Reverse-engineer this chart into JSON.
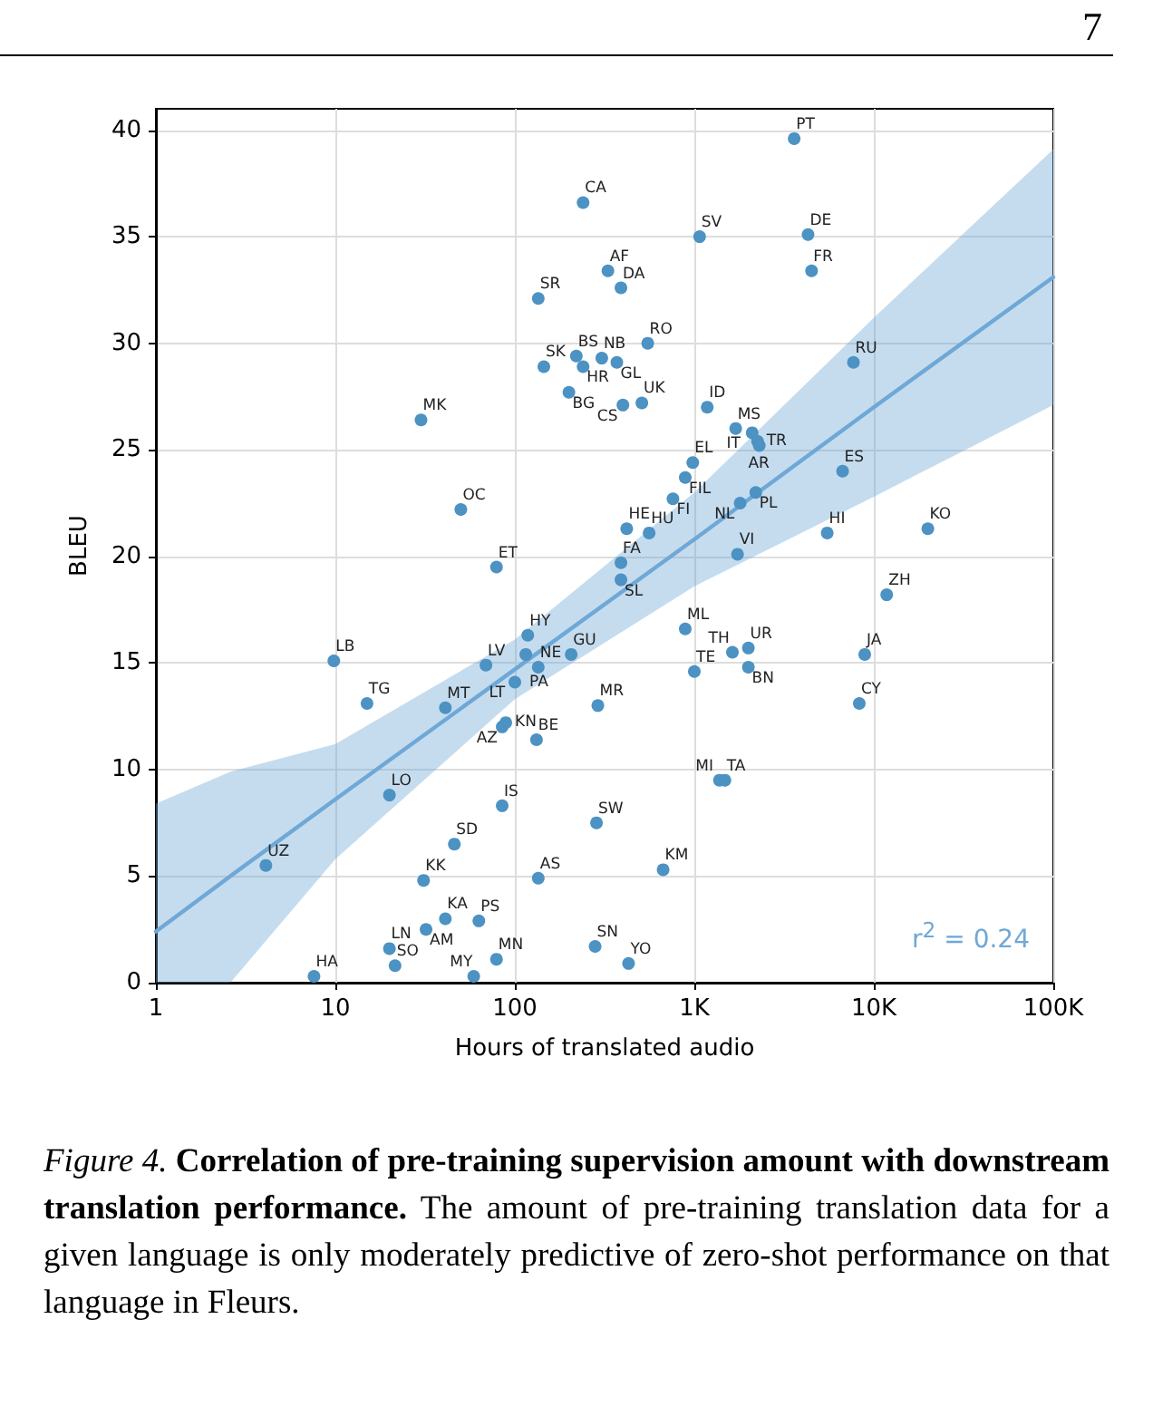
{
  "chart_data": {
    "type": "scatter",
    "xlabel": "Hours of translated audio",
    "ylabel": "BLEU",
    "log": "x",
    "grid": true,
    "xlim": [
      1,
      100000
    ],
    "ylim": [
      0,
      41
    ],
    "xticks": [
      1,
      10,
      100,
      {
        "value": 1000,
        "label": "1K"
      },
      {
        "value": 10000,
        "label": "10K"
      },
      {
        "value": 100000,
        "label": "100K"
      }
    ],
    "yticks": [
      0,
      5,
      10,
      15,
      20,
      25,
      30,
      35,
      40
    ],
    "series": [
      {
        "color": "#4c92c3",
        "marker": "circle",
        "x": [
          3600,
          240,
          1070,
          4300,
          330,
          390,
          4500,
          135,
          550,
          220,
          305,
          370,
          145,
          240,
          7700,
          200,
          400,
          510,
          30,
          1180,
          1700,
          2100,
          2250,
          2300,
          980,
          6700,
          890,
          2200,
          760,
          1800,
          50,
          420,
          560,
          5500,
          20000,
          390,
          1740,
          79,
          390,
          11800,
          890,
          118,
          206,
          1630,
          2000,
          8900,
          9.8,
          69,
          115,
          135,
          100,
          1000,
          2000,
          15,
          41,
          290,
          8300,
          89,
          85,
          132,
          20,
          85,
          285,
          1380,
          1480,
          4.1,
          46,
          31,
          135,
          670,
          41,
          63,
          32,
          20,
          21.5,
          7.6,
          59,
          79,
          280,
          430
        ],
        "values": [
          39.6,
          36.6,
          35.0,
          35.1,
          33.4,
          32.6,
          33.4,
          32.1,
          30.0,
          29.4,
          29.3,
          29.1,
          28.9,
          28.9,
          29.1,
          27.7,
          27.1,
          27.2,
          26.4,
          27.0,
          26.0,
          25.8,
          25.4,
          25.2,
          24.4,
          24.0,
          23.7,
          23.0,
          22.7,
          22.5,
          22.2,
          21.3,
          21.1,
          21.1,
          21.3,
          19.7,
          20.1,
          19.5,
          18.9,
          18.2,
          16.6,
          16.3,
          15.4,
          15.5,
          15.7,
          15.4,
          15.1,
          14.9,
          15.4,
          14.8,
          14.1,
          14.6,
          14.8,
          13.1,
          12.9,
          13.0,
          13.1,
          12.2,
          12.0,
          11.4,
          8.8,
          8.3,
          7.5,
          9.5,
          9.5,
          5.5,
          6.5,
          4.8,
          4.9,
          5.3,
          3.0,
          2.9,
          2.5,
          1.6,
          0.8,
          0.3,
          0.3,
          1.1,
          1.7,
          0.9
        ]
      },
      {
        "type": "line",
        "color": "#6fa8d6",
        "x": [
          1,
          2.6,
          10,
          100,
          1000,
          10000,
          100000
        ],
        "values": [
          2.4,
          5.0,
          8.6,
          14.7,
          20.8,
          27.0,
          33.1
        ],
        "upper": [
          8.4,
          9.9,
          11.2,
          16.1,
          23.0,
          31.2,
          39.1
        ],
        "lower": [
          0,
          0,
          5.8,
          13.3,
          18.6,
          22.8,
          27.1
        ]
      }
    ],
    "annotations": [
      "7",
      "r$^{2}$ = 0.24",
      "Figure 4. Correlation of pre-training supervision amount with downstream translation performance. The amount of pre-training translation data for a given language is only moderately predictive of zero-shot performance on that language in Fleurs.",
      {
        "text": "PT",
        "x": 3600,
        "y": 39.6
      },
      {
        "text": "CA",
        "x": 240,
        "y": 36.6
      },
      {
        "text": "SV",
        "x": 1070,
        "y": 35.0
      },
      {
        "text": "DE",
        "x": 4300,
        "y": 35.1
      },
      {
        "text": "AF",
        "x": 330,
        "y": 33.4
      },
      {
        "text": "DA",
        "x": 390,
        "y": 32.6
      },
      {
        "text": "FR",
        "x": 4500,
        "y": 33.4
      },
      {
        "text": "SR",
        "x": 135,
        "y": 32.1
      },
      {
        "text": "RO",
        "x": 550,
        "y": 30.0
      },
      {
        "text": "BS",
        "x": 220,
        "y": 29.4
      },
      {
        "text": "NB",
        "x": 305,
        "y": 29.3
      },
      {
        "text": "GL",
        "x": 370,
        "y": 29.1
      },
      {
        "text": "SK",
        "x": 145,
        "y": 28.9
      },
      {
        "text": "HR",
        "x": 240,
        "y": 28.9
      },
      {
        "text": "RU",
        "x": 7700,
        "y": 29.1
      },
      {
        "text": "BG",
        "x": 200,
        "y": 27.7
      },
      {
        "text": "CS",
        "x": 400,
        "y": 27.1
      },
      {
        "text": "UK",
        "x": 510,
        "y": 27.2
      },
      {
        "text": "MK",
        "x": 30,
        "y": 26.4
      },
      {
        "text": "ID",
        "x": 1180,
        "y": 27.0
      },
      {
        "text": "MS",
        "x": 1700,
        "y": 26.0
      },
      {
        "text": "IT",
        "x": 2100,
        "y": 25.8
      },
      {
        "text": "TR",
        "x": 2250,
        "y": 25.4
      },
      {
        "text": "AR",
        "x": 2300,
        "y": 25.2
      },
      {
        "text": "EL",
        "x": 980,
        "y": 24.4
      },
      {
        "text": "ES",
        "x": 6700,
        "y": 24.0
      },
      {
        "text": "FIL",
        "x": 890,
        "y": 23.7
      },
      {
        "text": "PL",
        "x": 2200,
        "y": 23.0
      },
      {
        "text": "FI",
        "x": 760,
        "y": 22.7
      },
      {
        "text": "NL",
        "x": 1800,
        "y": 22.5
      },
      {
        "text": "OC",
        "x": 50,
        "y": 22.2
      },
      {
        "text": "HE",
        "x": 420,
        "y": 21.3
      },
      {
        "text": "HU",
        "x": 560,
        "y": 21.1
      },
      {
        "text": "HI",
        "x": 5500,
        "y": 21.1
      },
      {
        "text": "KO",
        "x": 20000,
        "y": 21.3
      },
      {
        "text": "FA",
        "x": 390,
        "y": 19.7
      },
      {
        "text": "VI",
        "x": 1740,
        "y": 20.1
      },
      {
        "text": "ET",
        "x": 79,
        "y": 19.5
      },
      {
        "text": "SL",
        "x": 390,
        "y": 18.9
      },
      {
        "text": "ZH",
        "x": 11800,
        "y": 18.2
      },
      {
        "text": "ML",
        "x": 890,
        "y": 16.6
      },
      {
        "text": "HY",
        "x": 118,
        "y": 16.3
      },
      {
        "text": "GU",
        "x": 206,
        "y": 15.4
      },
      {
        "text": "TH",
        "x": 1630,
        "y": 15.5
      },
      {
        "text": "UR",
        "x": 2000,
        "y": 15.7
      },
      {
        "text": "JA",
        "x": 8900,
        "y": 15.4
      },
      {
        "text": "LB",
        "x": 9.8,
        "y": 15.1
      },
      {
        "text": "LV",
        "x": 69,
        "y": 14.9
      },
      {
        "text": "PA",
        "x": 115,
        "y": 15.4
      },
      {
        "text": "NE",
        "x": 135,
        "y": 14.8
      },
      {
        "text": "LT",
        "x": 100,
        "y": 14.1
      },
      {
        "text": "TE",
        "x": 1000,
        "y": 14.6
      },
      {
        "text": "BN",
        "x": 2000,
        "y": 14.8
      },
      {
        "text": "TG",
        "x": 15,
        "y": 13.1
      },
      {
        "text": "MT",
        "x": 41,
        "y": 12.9
      },
      {
        "text": "MR",
        "x": 290,
        "y": 13.0
      },
      {
        "text": "CY",
        "x": 8300,
        "y": 13.1
      },
      {
        "text": "KN",
        "x": 89,
        "y": 12.2
      },
      {
        "text": "AZ",
        "x": 85,
        "y": 12.0
      },
      {
        "text": "BE",
        "x": 132,
        "y": 11.4
      },
      {
        "text": "LO",
        "x": 20,
        "y": 8.8
      },
      {
        "text": "IS",
        "x": 85,
        "y": 8.3
      },
      {
        "text": "SW",
        "x": 285,
        "y": 7.5
      },
      {
        "text": "MI",
        "x": 1380,
        "y": 9.5
      },
      {
        "text": "TA",
        "x": 1480,
        "y": 9.5
      },
      {
        "text": "UZ",
        "x": 4.1,
        "y": 5.5
      },
      {
        "text": "SD",
        "x": 46,
        "y": 6.5
      },
      {
        "text": "KK",
        "x": 31,
        "y": 4.8
      },
      {
        "text": "AS",
        "x": 135,
        "y": 4.9
      },
      {
        "text": "KM",
        "x": 670,
        "y": 5.3
      },
      {
        "text": "KA",
        "x": 41,
        "y": 3.0
      },
      {
        "text": "PS",
        "x": 63,
        "y": 2.9
      },
      {
        "text": "AM",
        "x": 32,
        "y": 2.5
      },
      {
        "text": "LN",
        "x": 20,
        "y": 1.6
      },
      {
        "text": "SO",
        "x": 21.5,
        "y": 0.8
      },
      {
        "text": "HA",
        "x": 7.6,
        "y": 0.3
      },
      {
        "text": "MY",
        "x": 59,
        "y": 0.3
      },
      {
        "text": "MN",
        "x": 79,
        "y": 1.1
      },
      {
        "text": "SN",
        "x": 280,
        "y": 1.7
      },
      {
        "text": "YO",
        "x": 430,
        "y": 0.9
      }
    ]
  }
}
